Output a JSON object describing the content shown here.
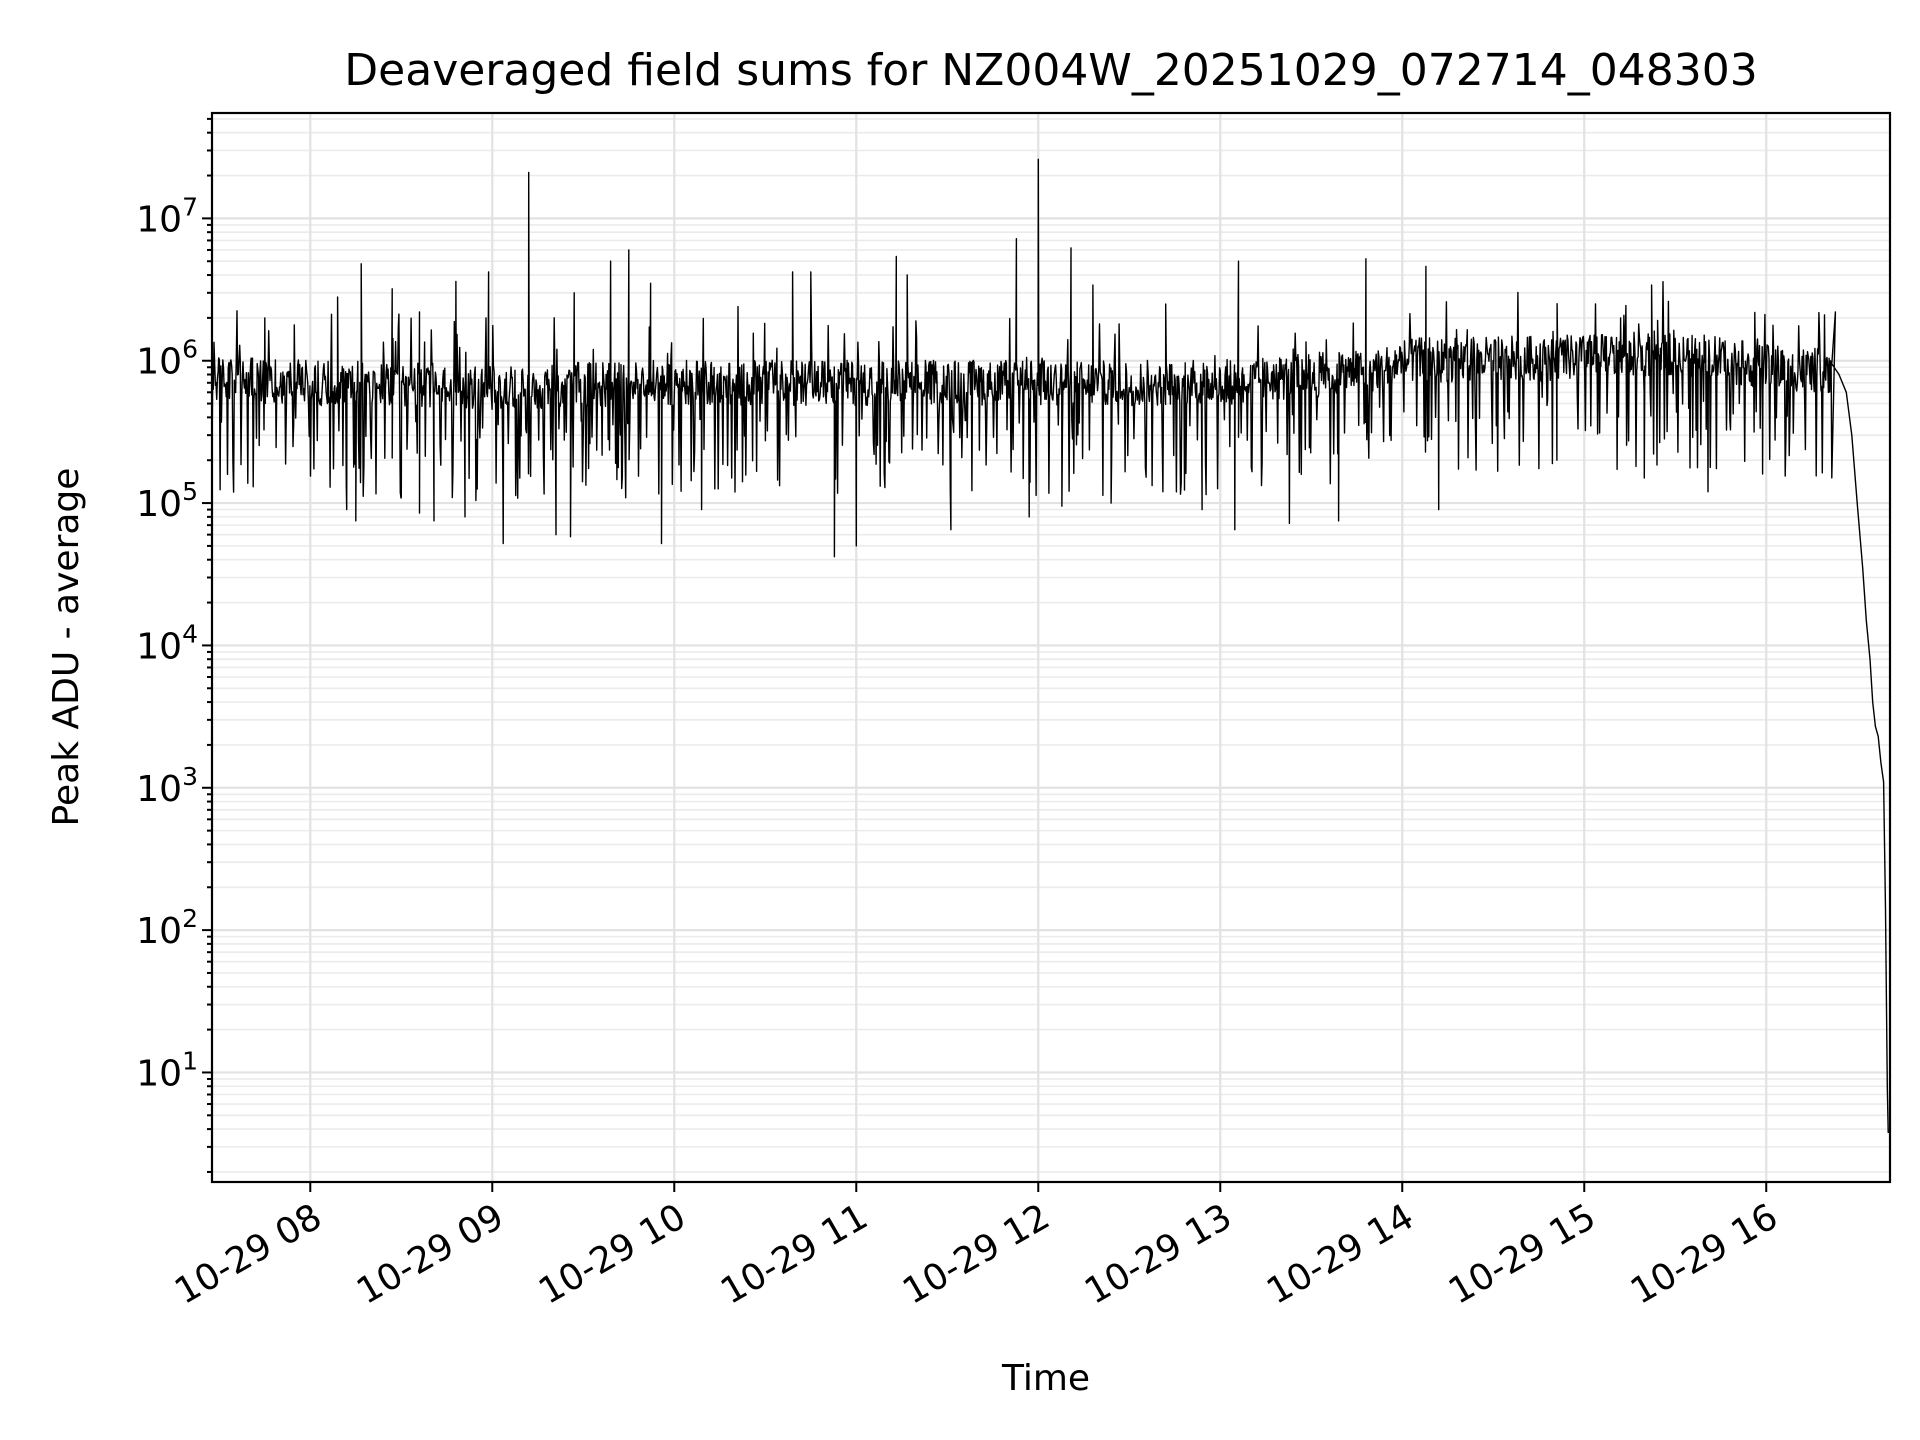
{
  "chart_data": {
    "type": "line",
    "title": "Deaveraged field sums for NZ004W_20251029_072714_048303",
    "xlabel": "Time",
    "ylabel": "Peak ADU - average",
    "yscale": "log",
    "xlim_hours": [
      7.46,
      16.68
    ],
    "ylim": [
      1.7,
      55000000
    ],
    "grid": true,
    "legend": null,
    "x_tick_labels": [
      "10-29 08",
      "10-29 09",
      "10-29 10",
      "10-29 11",
      "10-29 12",
      "10-29 13",
      "10-29 14",
      "10-29 15",
      "10-29 16"
    ],
    "x_tick_hours": [
      8,
      9,
      10,
      11,
      12,
      13,
      14,
      15,
      16
    ],
    "y_tick_labels": [
      {
        "base": "10",
        "exp": "1",
        "value": 10
      },
      {
        "base": "10",
        "exp": "2",
        "value": 100
      },
      {
        "base": "10",
        "exp": "3",
        "value": 1000
      },
      {
        "base": "10",
        "exp": "4",
        "value": 10000
      },
      {
        "base": "10",
        "exp": "5",
        "value": 100000
      },
      {
        "base": "10",
        "exp": "6",
        "value": 1000000
      },
      {
        "base": "10",
        "exp": "7",
        "value": 10000000
      }
    ],
    "series": [
      {
        "name": "Deaveraged field sum",
        "baseline": [
          {
            "t": 7.46,
            "v": 750000
          },
          {
            "t": 8.0,
            "v": 700000
          },
          {
            "t": 9.0,
            "v": 650000
          },
          {
            "t": 10.0,
            "v": 700000
          },
          {
            "t": 11.0,
            "v": 700000
          },
          {
            "t": 12.0,
            "v": 700000
          },
          {
            "t": 13.0,
            "v": 700000
          },
          {
            "t": 13.8,
            "v": 850000
          },
          {
            "t": 14.0,
            "v": 1000000
          },
          {
            "t": 15.0,
            "v": 1050000
          },
          {
            "t": 15.5,
            "v": 1150000
          },
          {
            "t": 16.0,
            "v": 900000
          },
          {
            "t": 16.35,
            "v": 850000
          }
        ],
        "peaks": [
          {
            "t": 7.75,
            "v": 2000000
          },
          {
            "t": 8.15,
            "v": 2800000
          },
          {
            "t": 8.28,
            "v": 4800000
          },
          {
            "t": 8.45,
            "v": 3200000
          },
          {
            "t": 8.6,
            "v": 2200000
          },
          {
            "t": 8.8,
            "v": 3600000
          },
          {
            "t": 8.98,
            "v": 4200000
          },
          {
            "t": 9.2,
            "v": 21000000
          },
          {
            "t": 9.45,
            "v": 3000000
          },
          {
            "t": 9.65,
            "v": 5000000
          },
          {
            "t": 9.75,
            "v": 6000000
          },
          {
            "t": 9.87,
            "v": 3500000
          },
          {
            "t": 10.35,
            "v": 2400000
          },
          {
            "t": 10.65,
            "v": 4200000
          },
          {
            "t": 10.75,
            "v": 4200000
          },
          {
            "t": 11.22,
            "v": 5400000
          },
          {
            "t": 11.28,
            "v": 4000000
          },
          {
            "t": 11.88,
            "v": 7200000
          },
          {
            "t": 12.0,
            "v": 26000000
          },
          {
            "t": 12.18,
            "v": 6200000
          },
          {
            "t": 12.3,
            "v": 3400000
          },
          {
            "t": 12.7,
            "v": 2500000
          },
          {
            "t": 13.1,
            "v": 5000000
          },
          {
            "t": 13.8,
            "v": 5200000
          },
          {
            "t": 14.13,
            "v": 4600000
          },
          {
            "t": 15.2,
            "v": 2000000
          },
          {
            "t": 15.37,
            "v": 3400000
          },
          {
            "t": 16.32,
            "v": 2100000
          },
          {
            "t": 16.38,
            "v": 2200000
          }
        ],
        "dips": [
          {
            "t": 8.2,
            "v": 90000
          },
          {
            "t": 8.25,
            "v": 75000
          },
          {
            "t": 8.5,
            "v": 110000
          },
          {
            "t": 8.6,
            "v": 85000
          },
          {
            "t": 8.68,
            "v": 75000
          },
          {
            "t": 8.85,
            "v": 80000
          },
          {
            "t": 9.06,
            "v": 52000
          },
          {
            "t": 9.35,
            "v": 60000
          },
          {
            "t": 9.43,
            "v": 58000
          },
          {
            "t": 9.93,
            "v": 52000
          },
          {
            "t": 10.15,
            "v": 90000
          },
          {
            "t": 10.88,
            "v": 42000
          },
          {
            "t": 11.0,
            "v": 50000
          },
          {
            "t": 11.52,
            "v": 65000
          },
          {
            "t": 11.95,
            "v": 80000
          },
          {
            "t": 12.13,
            "v": 95000
          },
          {
            "t": 12.4,
            "v": 100000
          },
          {
            "t": 12.9,
            "v": 90000
          },
          {
            "t": 13.08,
            "v": 65000
          },
          {
            "t": 13.38,
            "v": 72000
          },
          {
            "t": 13.65,
            "v": 75000
          },
          {
            "t": 14.2,
            "v": 90000
          },
          {
            "t": 14.85,
            "v": 200000
          },
          {
            "t": 15.33,
            "v": 150000
          },
          {
            "t": 15.68,
            "v": 120000
          },
          {
            "t": 15.98,
            "v": 160000
          }
        ],
        "tail": [
          {
            "t": 16.36,
            "v": 950000
          },
          {
            "t": 16.4,
            "v": 800000
          },
          {
            "t": 16.44,
            "v": 600000
          },
          {
            "t": 16.47,
            "v": 300000
          },
          {
            "t": 16.5,
            "v": 100000
          },
          {
            "t": 16.53,
            "v": 35000
          },
          {
            "t": 16.55,
            "v": 15000
          },
          {
            "t": 16.57,
            "v": 8000
          },
          {
            "t": 16.585,
            "v": 4000
          },
          {
            "t": 16.6,
            "v": 2700
          },
          {
            "t": 16.615,
            "v": 2300
          },
          {
            "t": 16.63,
            "v": 1500
          },
          {
            "t": 16.645,
            "v": 1100
          },
          {
            "t": 16.655,
            "v": 140
          },
          {
            "t": 16.665,
            "v": 8
          },
          {
            "t": 16.67,
            "v": 3.8
          },
          {
            "t": 16.68,
            "v": 3.8
          }
        ]
      }
    ]
  }
}
